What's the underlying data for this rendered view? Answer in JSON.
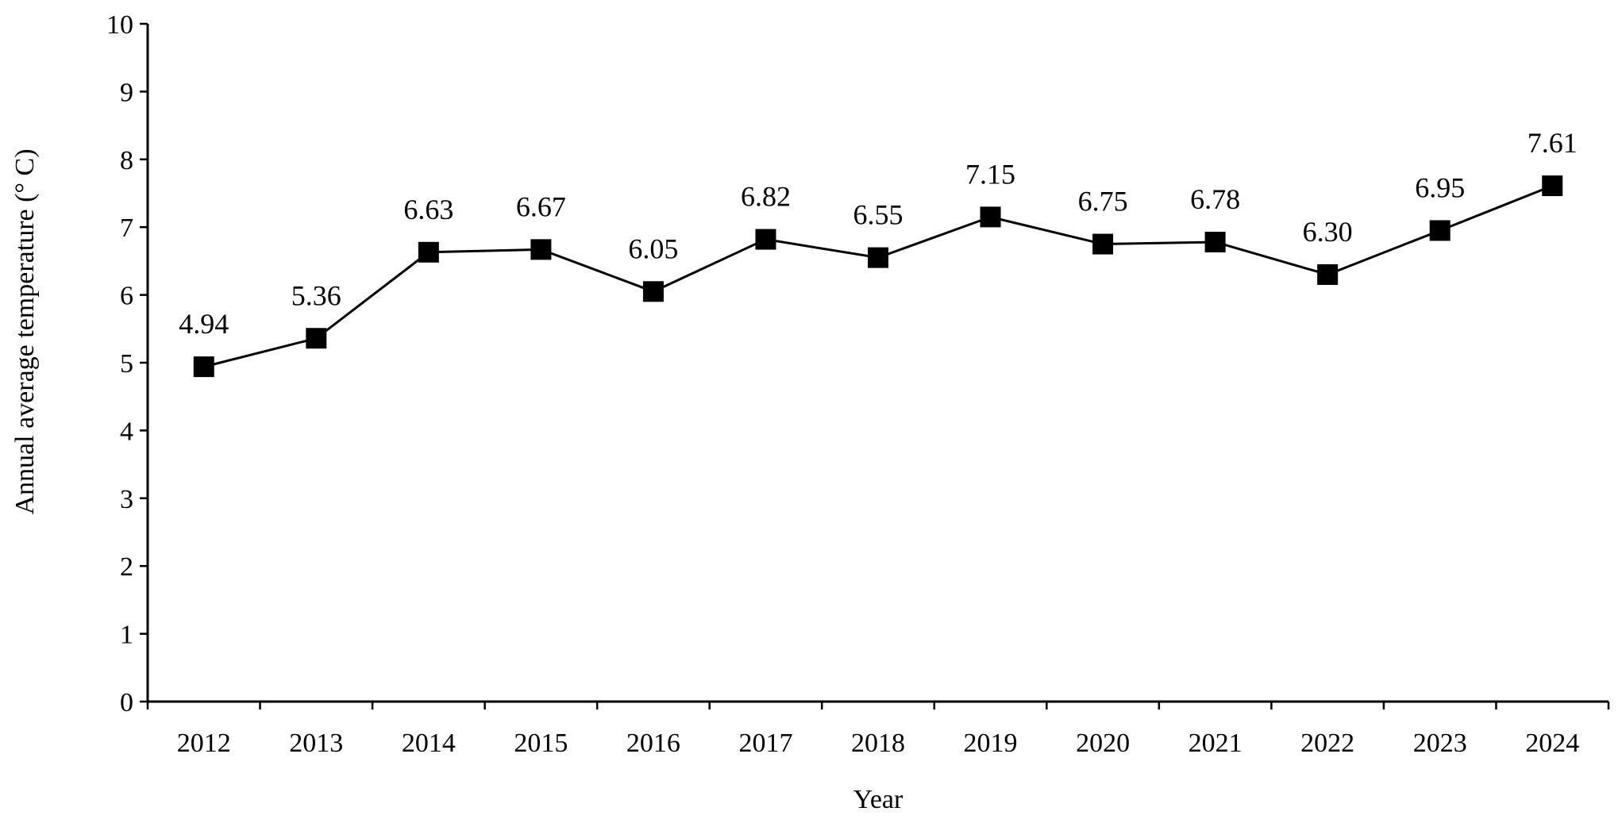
{
  "chart_data": {
    "type": "line",
    "title": "",
    "xlabel": "Year",
    "ylabel": "Annual  average temperature (° C)",
    "ylim": [
      0,
      10
    ],
    "yticks": [
      "0",
      "1",
      "2",
      "3",
      "4",
      "5",
      "6",
      "7",
      "8",
      "9",
      "10"
    ],
    "categories": [
      "2012",
      "2013",
      "2014",
      "2015",
      "2016",
      "2017",
      "2018",
      "2019",
      "2020",
      "2021",
      "2022",
      "2023",
      "2024"
    ],
    "series": [
      {
        "name": "Annual average temperature",
        "values": [
          4.94,
          5.36,
          6.63,
          6.67,
          6.05,
          6.82,
          6.55,
          7.15,
          6.75,
          6.78,
          6.3,
          6.95,
          7.61
        ],
        "labels": [
          "4.94",
          "5.36",
          "6.63",
          "6.67",
          "6.05",
          "6.82",
          "6.55",
          "7.15",
          "6.75",
          "6.78",
          "6.30",
          "6.95",
          "7.61"
        ],
        "marker": "square",
        "color": "#000000"
      }
    ],
    "grid": false,
    "legend": "none"
  }
}
